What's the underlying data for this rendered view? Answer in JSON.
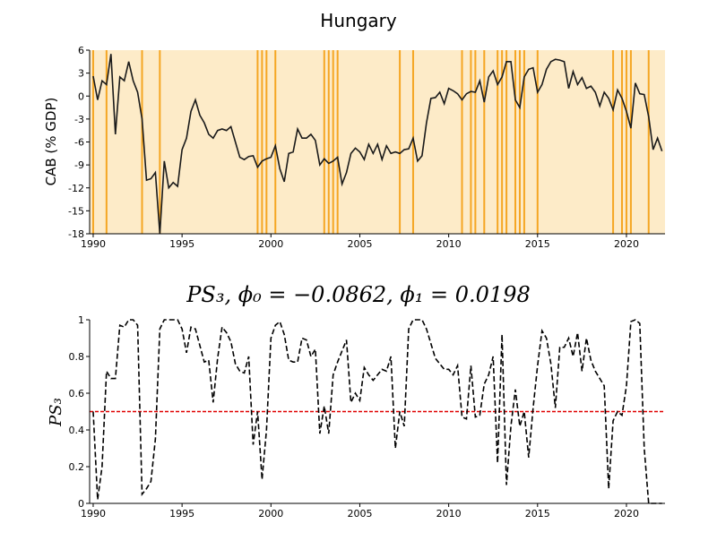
{
  "chart_data": [
    {
      "type": "line",
      "title": "Hungary",
      "y_label": "CAB (% GDP)",
      "x": [
        1990,
        1990.25,
        1990.5,
        1990.75,
        1991,
        1991.25,
        1991.5,
        1991.75,
        1992,
        1992.25,
        1992.5,
        1992.75,
        1993,
        1993.25,
        1993.5,
        1993.75,
        1994,
        1994.25,
        1994.5,
        1994.75,
        1995,
        1995.25,
        1995.5,
        1995.75,
        1996,
        1996.25,
        1996.5,
        1996.75,
        1997,
        1997.25,
        1997.5,
        1997.75,
        1998,
        1998.25,
        1998.5,
        1998.75,
        1999,
        1999.25,
        1999.5,
        1999.75,
        2000,
        2000.25,
        2000.5,
        2000.75,
        2001,
        2001.25,
        2001.5,
        2001.75,
        2002,
        2002.25,
        2002.5,
        2002.75,
        2003,
        2003.25,
        2003.5,
        2003.75,
        2004,
        2004.25,
        2004.5,
        2004.75,
        2005,
        2005.25,
        2005.5,
        2005.75,
        2006,
        2006.25,
        2006.5,
        2006.75,
        2007,
        2007.25,
        2007.5,
        2007.75,
        2008,
        2008.25,
        2008.5,
        2008.75,
        2009,
        2009.25,
        2009.5,
        2009.75,
        2010,
        2010.25,
        2010.5,
        2010.75,
        2011,
        2011.25,
        2011.5,
        2011.75,
        2012,
        2012.25,
        2012.5,
        2012.75,
        2013,
        2013.25,
        2013.5,
        2013.75,
        2014,
        2014.25,
        2014.5,
        2014.75,
        2015,
        2015.25,
        2015.5,
        2015.75,
        2016,
        2016.25,
        2016.5,
        2016.75,
        2017,
        2017.25,
        2017.5,
        2017.75,
        2018,
        2018.25,
        2018.5,
        2018.75,
        2019,
        2019.25,
        2019.5,
        2019.75,
        2020,
        2020.25,
        2020.5,
        2020.75,
        2021,
        2021.25,
        2021.5,
        2021.75,
        2022
      ],
      "series": [
        {
          "name": "CAB",
          "color": "#1a1a1a",
          "values": [
            2.6,
            -0.5,
            2,
            1.5,
            5.5,
            -5,
            2.5,
            2,
            4.5,
            2,
            0.5,
            -3,
            -11,
            -10.8,
            -10,
            -18,
            -8.5,
            -12,
            -11.3,
            -11.8,
            -7,
            -5.5,
            -2,
            -0.5,
            -2.5,
            -3.5,
            -5,
            -5.5,
            -4.5,
            -4.3,
            -4.5,
            -4,
            -6,
            -8,
            -8.3,
            -7.9,
            -7.8,
            -9.3,
            -8.5,
            -8.2,
            -8,
            -6.5,
            -9.5,
            -11.2,
            -7.5,
            -7.3,
            -4.3,
            -5.5,
            -5.5,
            -5,
            -5.8,
            -9,
            -8.2,
            -8.8,
            -8.5,
            -8,
            -11.5,
            -10,
            -7.5,
            -6.8,
            -7.3,
            -8.3,
            -6.3,
            -7.5,
            -6.3,
            -8.3,
            -6.5,
            -7.5,
            -7.3,
            -7.5,
            -7,
            -6.9,
            -5.5,
            -8.5,
            -7.8,
            -3.5,
            -0.3,
            -0.2,
            0.5,
            -1,
            1,
            0.7,
            0.3,
            -0.5,
            0.3,
            0.6,
            0.5,
            2,
            -0.8,
            2.5,
            3.3,
            1.5,
            2.5,
            4.5,
            4.5,
            -0.5,
            -1.5,
            2.5,
            3.5,
            3.7,
            0.5,
            1.5,
            3.5,
            4.5,
            4.8,
            4.7,
            4.5,
            1,
            3.2,
            1.5,
            2.4,
            1,
            1.3,
            0.5,
            -1.3,
            0.5,
            -0.3,
            -1.8,
            0.8,
            -0.3,
            -2,
            -4.2,
            1.7,
            0.3,
            0.2,
            -2.7,
            -7,
            -5.5,
            -7.2
          ]
        }
      ],
      "highlight_x": [
        1990,
        1990.75,
        1992.75,
        1993.75,
        1999.25,
        1999.5,
        1999.75,
        2000.25,
        2003,
        2003.25,
        2003.5,
        2003.75,
        2007.25,
        2008,
        2010.75,
        2011.25,
        2011.5,
        2012,
        2012.75,
        2013,
        2013.25,
        2013.75,
        2014,
        2014.25,
        2015,
        2019.25,
        2019.75,
        2020,
        2020.25,
        2021.25
      ],
      "highlight_color": "#f5a623",
      "background_color": "#fdebc8",
      "xlim": [
        1989.8,
        2022.17
      ],
      "ylim": [
        -18,
        6
      ],
      "xticks": [
        1990,
        1995,
        2000,
        2005,
        2010,
        2015,
        2020
      ],
      "yticks": [
        -18,
        -15,
        -12,
        -9,
        -6,
        -3,
        0,
        3,
        6
      ]
    },
    {
      "type": "line",
      "title": "PS₃, ϕ₀ = −0.0862, ϕ₁ = 0.0198",
      "y_label": "PS₃",
      "x": [
        1990,
        1990.25,
        1990.5,
        1990.75,
        1991,
        1991.25,
        1991.5,
        1991.75,
        1992,
        1992.25,
        1992.5,
        1992.75,
        1993,
        1993.25,
        1993.5,
        1993.75,
        1994,
        1994.25,
        1994.5,
        1994.75,
        1995,
        1995.25,
        1995.5,
        1995.75,
        1996,
        1996.25,
        1996.5,
        1996.75,
        1997,
        1997.25,
        1997.5,
        1997.75,
        1998,
        1998.25,
        1998.5,
        1998.75,
        1999,
        1999.25,
        1999.5,
        1999.75,
        2000,
        2000.25,
        2000.5,
        2000.75,
        2001,
        2001.25,
        2001.5,
        2001.75,
        2002,
        2002.25,
        2002.5,
        2002.75,
        2003,
        2003.25,
        2003.5,
        2003.75,
        2004,
        2004.25,
        2004.5,
        2004.75,
        2005,
        2005.25,
        2005.5,
        2005.75,
        2006,
        2006.25,
        2006.5,
        2006.75,
        2007,
        2007.25,
        2007.5,
        2007.75,
        2008,
        2008.25,
        2008.5,
        2008.75,
        2009,
        2009.25,
        2009.5,
        2009.75,
        2010,
        2010.25,
        2010.5,
        2010.75,
        2011,
        2011.25,
        2011.5,
        2011.75,
        2012,
        2012.25,
        2012.5,
        2012.75,
        2013,
        2013.25,
        2013.5,
        2013.75,
        2014,
        2014.25,
        2014.5,
        2014.75,
        2015,
        2015.25,
        2015.5,
        2015.75,
        2016,
        2016.25,
        2016.5,
        2016.75,
        2017,
        2017.25,
        2017.5,
        2017.75,
        2018,
        2018.25,
        2018.5,
        2018.75,
        2019,
        2019.25,
        2019.5,
        2019.75,
        2020,
        2020.25,
        2020.5,
        2020.75,
        2021,
        2021.25,
        2021.5,
        2021.75,
        2022
      ],
      "series": [
        {
          "name": "PS3",
          "color": "#000000",
          "dashed": true,
          "values": [
            0.5,
            0.02,
            0.2,
            0.72,
            0.68,
            0.68,
            0.97,
            0.96,
            1,
            1,
            0.97,
            0.05,
            0.08,
            0.12,
            0.35,
            0.95,
            1,
            1,
            1,
            1,
            0.95,
            0.82,
            0.96,
            0.95,
            0.86,
            0.77,
            0.78,
            0.55,
            0.79,
            0.96,
            0.93,
            0.88,
            0.76,
            0.72,
            0.71,
            0.8,
            0.32,
            0.5,
            0.13,
            0.4,
            0.9,
            0.97,
            0.99,
            0.92,
            0.78,
            0.77,
            0.77,
            0.9,
            0.89,
            0.8,
            0.84,
            0.38,
            0.53,
            0.38,
            0.7,
            0.77,
            0.83,
            0.89,
            0.55,
            0.6,
            0.56,
            0.74,
            0.7,
            0.67,
            0.7,
            0.73,
            0.72,
            0.8,
            0.3,
            0.5,
            0.42,
            0.95,
            1,
            1,
            1,
            0.95,
            0.87,
            0.79,
            0.76,
            0.73,
            0.73,
            0.7,
            0.75,
            0.47,
            0.46,
            0.75,
            0.47,
            0.48,
            0.65,
            0.7,
            0.8,
            0.22,
            0.92,
            0.1,
            0.42,
            0.62,
            0.42,
            0.5,
            0.25,
            0.52,
            0.75,
            0.94,
            0.9,
            0.76,
            0.52,
            0.85,
            0.85,
            0.9,
            0.8,
            0.93,
            0.72,
            0.9,
            0.78,
            0.72,
            0.68,
            0.64,
            0.08,
            0.45,
            0.5,
            0.48,
            0.64,
            0.99,
            1,
            0.98,
            0.3,
            0,
            0,
            0,
            0
          ]
        }
      ],
      "threshold": 0.5,
      "threshold_color": "#e00000",
      "xlim": [
        1989.8,
        2022.17
      ],
      "ylim": [
        0,
        1
      ],
      "xticks": [
        1990,
        1995,
        2000,
        2005,
        2010,
        2015,
        2020
      ],
      "yticks": [
        0,
        0.2,
        0.4,
        0.6,
        0.8,
        1
      ]
    }
  ]
}
